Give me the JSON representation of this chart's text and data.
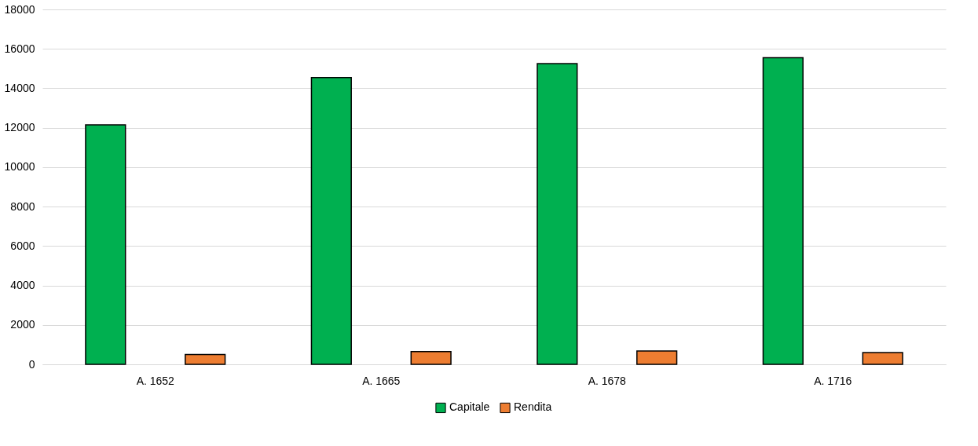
{
  "chart_data": {
    "type": "bar",
    "categories": [
      "A. 1652",
      "A. 1665",
      "A. 1678",
      "A. 1716"
    ],
    "series": [
      {
        "name": "Capitale",
        "color": "#00b050",
        "values": [
          12150,
          14550,
          15250,
          15550
        ]
      },
      {
        "name": "Rendita",
        "color": "#ed7d31",
        "values": [
          500,
          650,
          680,
          600
        ]
      }
    ],
    "ylim": [
      0,
      18000
    ],
    "yticks": [
      0,
      2000,
      4000,
      6000,
      8000,
      10000,
      12000,
      14000,
      16000,
      18000
    ],
    "grid": "y",
    "legend": "bottom"
  }
}
